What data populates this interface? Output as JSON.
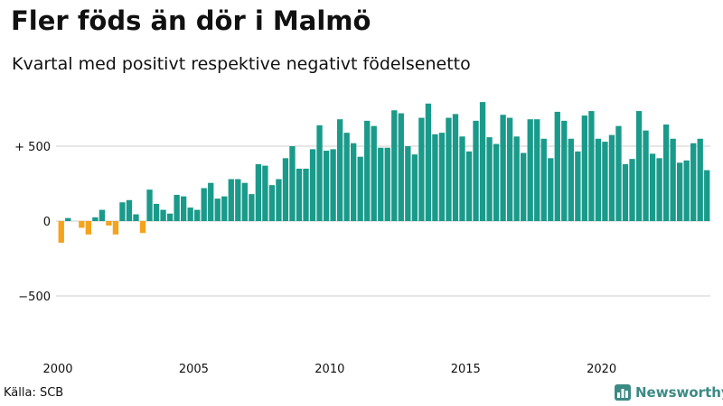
{
  "title": "Fler föds än dör i Malmö",
  "subtitle": "Kvartal med positivt respektive negativt födelsenetto",
  "source": "Källa: SCB",
  "brand": "Newsworthy",
  "brand_icon": "newsworthy-chart-logo-icon",
  "colors": {
    "positive": "#1a9a8a",
    "negative": "#f5a31c",
    "grid": "#cccccc",
    "brand": "#3c8a84"
  },
  "chart_data": {
    "type": "bar",
    "title": "Fler föds än dör i Malmö",
    "subtitle": "Kvartal med positivt respektive negativt födelsenetto",
    "xlabel": "",
    "ylabel": "",
    "ylim": [
      -850,
      850
    ],
    "x_start": 2000,
    "quarters_per_year": 4,
    "yticks": [
      {
        "value": 500,
        "label": "+ 500"
      },
      {
        "value": 0,
        "label": "0"
      },
      {
        "value": -500,
        "label": "−500"
      }
    ],
    "xticks": [
      {
        "value": 2000,
        "label": "2000"
      },
      {
        "value": 2005,
        "label": "2005"
      },
      {
        "value": 2010,
        "label": "2010"
      },
      {
        "value": 2015,
        "label": "2015"
      },
      {
        "value": 2020,
        "label": "2020"
      }
    ],
    "values": [
      -145,
      20,
      0,
      -45,
      -90,
      25,
      75,
      -30,
      -90,
      125,
      140,
      45,
      -80,
      210,
      115,
      75,
      50,
      175,
      165,
      90,
      75,
      220,
      255,
      150,
      165,
      280,
      280,
      255,
      180,
      380,
      370,
      240,
      280,
      420,
      500,
      350,
      350,
      480,
      640,
      470,
      480,
      680,
      590,
      520,
      430,
      670,
      635,
      490,
      490,
      740,
      720,
      500,
      445,
      690,
      785,
      580,
      590,
      690,
      715,
      565,
      465,
      670,
      795,
      560,
      515,
      710,
      690,
      565,
      455,
      680,
      680,
      550,
      420,
      730,
      670,
      550,
      465,
      705,
      735,
      550,
      530,
      575,
      635,
      380,
      415,
      735,
      605,
      450,
      420,
      645,
      550,
      390,
      405,
      520,
      550,
      340
    ]
  }
}
